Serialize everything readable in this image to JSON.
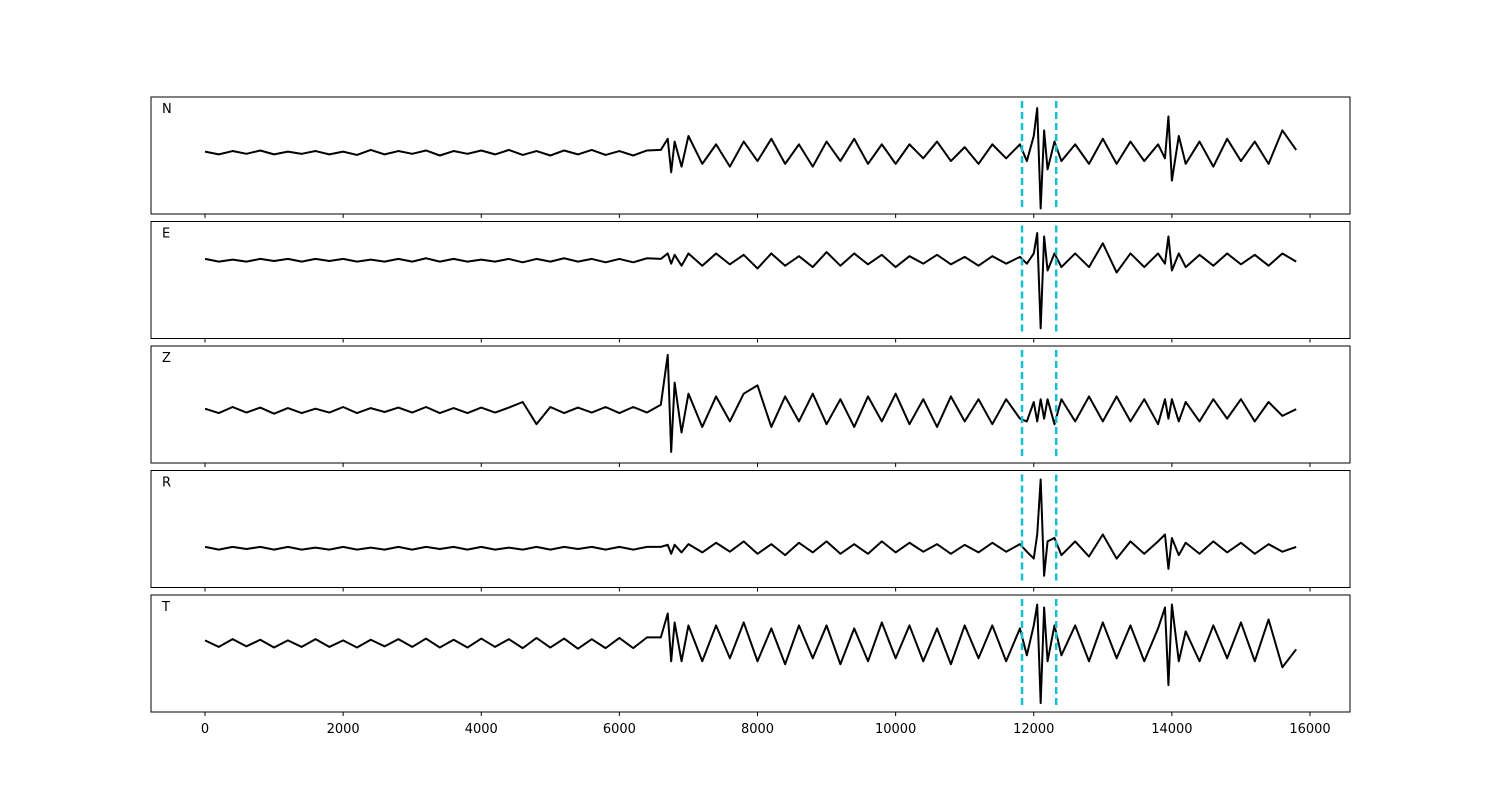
{
  "chart_data": [
    {
      "type": "line",
      "label": "N",
      "color": "#000000",
      "vline_color": "#17becf",
      "xlim": [
        -782,
        16579
      ],
      "ylim": [
        -1.1,
        1
      ],
      "xticks": [
        0,
        2000,
        4000,
        6000,
        8000,
        10000,
        12000,
        14000,
        16000
      ],
      "vlines": [
        11830,
        12325
      ],
      "x": [
        0,
        200,
        400,
        600,
        800,
        1000,
        1200,
        1400,
        1600,
        1800,
        2000,
        2200,
        2400,
        2600,
        2800,
        3000,
        3200,
        3400,
        3600,
        3800,
        4000,
        4200,
        4400,
        4600,
        4800,
        5000,
        5200,
        5400,
        5600,
        5800,
        6000,
        6200,
        6400,
        6600,
        6700,
        6750,
        6800,
        6900,
        7000,
        7200,
        7400,
        7600,
        7800,
        8000,
        8200,
        8400,
        8600,
        8800,
        9000,
        9200,
        9400,
        9600,
        9800,
        10000,
        10200,
        10400,
        10600,
        10800,
        11000,
        11200,
        11400,
        11600,
        11800,
        11900,
        12000,
        12050,
        12100,
        12150,
        12200,
        12300,
        12400,
        12600,
        12800,
        13000,
        13200,
        13400,
        13600,
        13800,
        13900,
        13950,
        14000,
        14100,
        14200,
        14400,
        14600,
        14800,
        15000,
        15200,
        15400,
        15600,
        15800
      ],
      "values": [
        0.02,
        -0.03,
        0.03,
        -0.02,
        0.04,
        -0.03,
        0.02,
        -0.02,
        0.03,
        -0.03,
        0.02,
        -0.04,
        0.05,
        -0.03,
        0.03,
        -0.02,
        0.04,
        -0.05,
        0.03,
        -0.02,
        0.04,
        -0.03,
        0.05,
        -0.04,
        0.03,
        -0.05,
        0.04,
        -0.03,
        0.05,
        -0.04,
        0.03,
        -0.05,
        0.04,
        0.05,
        0.25,
        -0.35,
        0.2,
        -0.25,
        0.3,
        -0.2,
        0.15,
        -0.25,
        0.2,
        -0.15,
        0.25,
        -0.2,
        0.15,
        -0.25,
        0.2,
        -0.15,
        0.25,
        -0.2,
        0.15,
        -0.2,
        0.15,
        -0.1,
        0.2,
        -0.15,
        0.1,
        -0.2,
        0.15,
        -0.1,
        0.15,
        -0.15,
        0.3,
        0.8,
        -1.0,
        0.4,
        -0.3,
        0.2,
        -0.15,
        0.15,
        -0.2,
        0.25,
        -0.2,
        0.2,
        -0.15,
        0.15,
        -0.1,
        0.65,
        -0.5,
        0.3,
        -0.2,
        0.2,
        -0.25,
        0.25,
        -0.15,
        0.2,
        -0.2,
        0.4,
        0.05
      ]
    },
    {
      "type": "line",
      "label": "E",
      "color": "#000000",
      "vline_color": "#17becf",
      "xlim": [
        -782,
        16579
      ],
      "ylim": [
        -1.15,
        0.57
      ],
      "xticks": [
        0,
        2000,
        4000,
        6000,
        8000,
        10000,
        12000,
        14000,
        16000
      ],
      "vlines": [
        11830,
        12325
      ],
      "x": [
        0,
        200,
        400,
        600,
        800,
        1000,
        1200,
        1400,
        1600,
        1800,
        2000,
        2200,
        2400,
        2600,
        2800,
        3000,
        3200,
        3400,
        3600,
        3800,
        4000,
        4200,
        4400,
        4600,
        4800,
        5000,
        5200,
        5400,
        5600,
        5800,
        6000,
        6200,
        6400,
        6600,
        6700,
        6750,
        6800,
        6900,
        7000,
        7200,
        7400,
        7600,
        7800,
        8000,
        8200,
        8400,
        8600,
        8800,
        9000,
        9200,
        9400,
        9600,
        9800,
        10000,
        10200,
        10400,
        10600,
        10800,
        11000,
        11200,
        11400,
        11600,
        11800,
        11900,
        12000,
        12050,
        12100,
        12150,
        12200,
        12300,
        12400,
        12600,
        12800,
        13000,
        13200,
        13400,
        13600,
        13800,
        13900,
        13950,
        14000,
        14100,
        14200,
        14400,
        14600,
        14800,
        15000,
        15200,
        15400,
        15600,
        15800
      ],
      "values": [
        0.02,
        -0.02,
        0.01,
        -0.02,
        0.02,
        -0.01,
        0.02,
        -0.02,
        0.02,
        -0.01,
        0.02,
        -0.02,
        0.01,
        -0.02,
        0.02,
        -0.02,
        0.03,
        -0.02,
        0.02,
        -0.02,
        0.01,
        -0.02,
        0.02,
        -0.03,
        0.02,
        -0.02,
        0.03,
        -0.02,
        0.02,
        -0.03,
        0.02,
        -0.03,
        0.03,
        0.02,
        0.1,
        -0.05,
        0.08,
        -0.08,
        0.1,
        -0.08,
        0.1,
        -0.06,
        0.08,
        -0.12,
        0.1,
        -0.08,
        0.06,
        -0.1,
        0.12,
        -0.08,
        0.1,
        -0.06,
        0.08,
        -0.1,
        0.06,
        -0.05,
        0.08,
        -0.06,
        0.05,
        -0.08,
        0.06,
        -0.05,
        0.05,
        -0.05,
        0.1,
        0.4,
        -1.0,
        0.35,
        -0.15,
        0.1,
        -0.1,
        0.1,
        -0.1,
        0.25,
        -0.18,
        0.1,
        -0.1,
        0.1,
        -0.05,
        0.35,
        -0.15,
        0.1,
        -0.1,
        0.08,
        -0.08,
        0.1,
        -0.06,
        0.08,
        -0.08,
        0.1,
        -0.02
      ]
    },
    {
      "type": "line",
      "label": "Z",
      "color": "#000000",
      "vline_color": "#17becf",
      "xlim": [
        -782,
        16579
      ],
      "ylim": [
        -0.95,
        1.16
      ],
      "xticks": [
        0,
        2000,
        4000,
        6000,
        8000,
        10000,
        12000,
        14000,
        16000
      ],
      "vlines": [
        11830,
        12325
      ],
      "x": [
        0,
        200,
        400,
        600,
        800,
        1000,
        1200,
        1400,
        1600,
        1800,
        2000,
        2200,
        2400,
        2600,
        2800,
        3000,
        3200,
        3400,
        3600,
        3800,
        4000,
        4200,
        4400,
        4600,
        4800,
        5000,
        5200,
        5400,
        5600,
        5800,
        6000,
        6200,
        6400,
        6600,
        6700,
        6750,
        6800,
        6900,
        7000,
        7200,
        7400,
        7600,
        7800,
        8000,
        8200,
        8400,
        8600,
        8800,
        9000,
        9200,
        9400,
        9600,
        9800,
        10000,
        10200,
        10400,
        10600,
        10800,
        11000,
        11200,
        11400,
        11600,
        11800,
        11900,
        12000,
        12050,
        12100,
        12150,
        12200,
        12300,
        12400,
        12600,
        12800,
        13000,
        13200,
        13400,
        13600,
        13800,
        13900,
        13950,
        14000,
        14100,
        14200,
        14400,
        14600,
        14800,
        15000,
        15200,
        15400,
        15600,
        15800
      ],
      "values": [
        0.03,
        -0.05,
        0.06,
        -0.04,
        0.05,
        -0.06,
        0.04,
        -0.05,
        0.03,
        -0.04,
        0.06,
        -0.05,
        0.04,
        -0.03,
        0.05,
        -0.04,
        0.06,
        -0.05,
        0.04,
        -0.05,
        0.05,
        -0.04,
        0.05,
        0.15,
        -0.25,
        0.06,
        -0.05,
        0.05,
        -0.04,
        0.06,
        -0.05,
        0.06,
        -0.04,
        0.1,
        1.0,
        -0.75,
        0.5,
        -0.4,
        0.3,
        -0.3,
        0.25,
        -0.2,
        0.3,
        0.45,
        -0.3,
        0.25,
        -0.2,
        0.3,
        -0.25,
        0.2,
        -0.3,
        0.25,
        -0.2,
        0.3,
        -0.25,
        0.2,
        -0.3,
        0.25,
        -0.2,
        0.2,
        -0.25,
        0.2,
        -0.15,
        -0.2,
        0.15,
        -0.2,
        0.2,
        -0.15,
        0.2,
        -0.25,
        0.2,
        -0.2,
        0.25,
        -0.2,
        0.25,
        -0.2,
        0.2,
        -0.25,
        0.2,
        -0.15,
        0.2,
        -0.2,
        0.15,
        -0.2,
        0.2,
        -0.15,
        0.2,
        -0.2,
        0.15,
        -0.1,
        0.02
      ]
    },
    {
      "type": "line",
      "label": "R",
      "color": "#000000",
      "vline_color": "#17becf",
      "xlim": [
        -782,
        16579
      ],
      "ylim": [
        -0.57,
        1.13
      ],
      "xticks": [
        0,
        2000,
        4000,
        6000,
        8000,
        10000,
        12000,
        14000,
        16000
      ],
      "vlines": [
        11830,
        12325
      ],
      "x": [
        0,
        200,
        400,
        600,
        800,
        1000,
        1200,
        1400,
        1600,
        1800,
        2000,
        2200,
        2400,
        2600,
        2800,
        3000,
        3200,
        3400,
        3600,
        3800,
        4000,
        4200,
        4400,
        4600,
        4800,
        5000,
        5200,
        5400,
        5600,
        5800,
        6000,
        6200,
        6400,
        6600,
        6700,
        6750,
        6800,
        6900,
        7000,
        7200,
        7400,
        7600,
        7800,
        8000,
        8200,
        8400,
        8600,
        8800,
        9000,
        9200,
        9400,
        9600,
        9800,
        10000,
        10200,
        10400,
        10600,
        10800,
        11000,
        11200,
        11400,
        11600,
        11800,
        11900,
        12000,
        12050,
        12100,
        12150,
        12200,
        12300,
        12400,
        12600,
        12800,
        13000,
        13200,
        13400,
        13600,
        13800,
        13900,
        13950,
        14000,
        14100,
        14200,
        14400,
        14600,
        14800,
        15000,
        15200,
        15400,
        15600,
        15800
      ],
      "values": [
        0.02,
        -0.02,
        0.02,
        -0.01,
        0.02,
        -0.02,
        0.02,
        -0.02,
        0.01,
        -0.02,
        0.02,
        -0.02,
        0.01,
        -0.02,
        0.02,
        -0.02,
        0.02,
        -0.01,
        0.02,
        -0.02,
        0.02,
        -0.02,
        0.01,
        -0.02,
        0.02,
        -0.02,
        0.02,
        -0.01,
        0.02,
        -0.02,
        0.02,
        -0.02,
        0.02,
        0.02,
        0.05,
        -0.08,
        0.05,
        -0.06,
        0.06,
        -0.06,
        0.08,
        -0.05,
        0.1,
        -0.08,
        0.06,
        -0.1,
        0.08,
        -0.06,
        0.1,
        -0.08,
        0.06,
        -0.08,
        0.1,
        -0.06,
        0.08,
        -0.05,
        0.06,
        -0.08,
        0.05,
        -0.06,
        0.08,
        -0.05,
        0.06,
        -0.05,
        -0.15,
        0.2,
        1.0,
        -0.4,
        0.1,
        0.15,
        -0.1,
        0.1,
        -0.12,
        0.2,
        -0.15,
        0.1,
        -0.08,
        0.1,
        0.2,
        -0.3,
        0.15,
        -0.1,
        0.08,
        -0.08,
        0.1,
        -0.06,
        0.08,
        -0.08,
        0.06,
        -0.05,
        0.02
      ]
    },
    {
      "type": "line",
      "label": "T",
      "color": "#000000",
      "vline_color": "#17becf",
      "xlim": [
        -782,
        16579
      ],
      "ylim": [
        -1.15,
        0.81
      ],
      "xticks": [
        0,
        2000,
        4000,
        6000,
        8000,
        10000,
        12000,
        14000,
        16000
      ],
      "vlines": [
        11830,
        12325
      ],
      "x": [
        0,
        200,
        400,
        600,
        800,
        1000,
        1200,
        1400,
        1600,
        1800,
        2000,
        2200,
        2400,
        2600,
        2800,
        3000,
        3200,
        3400,
        3600,
        3800,
        4000,
        4200,
        4400,
        4600,
        4800,
        5000,
        5200,
        5400,
        5600,
        5800,
        6000,
        6200,
        6400,
        6600,
        6700,
        6750,
        6800,
        6900,
        7000,
        7200,
        7400,
        7600,
        7800,
        8000,
        8200,
        8400,
        8600,
        8800,
        9000,
        9200,
        9400,
        9600,
        9800,
        10000,
        10200,
        10400,
        10600,
        10800,
        11000,
        11200,
        11400,
        11600,
        11800,
        11900,
        12000,
        12050,
        12100,
        12150,
        12200,
        12300,
        12400,
        12600,
        12800,
        13000,
        13200,
        13400,
        13600,
        13800,
        13900,
        13950,
        14000,
        14100,
        14200,
        14400,
        14600,
        14800,
        15000,
        15200,
        15400,
        15600,
        15800
      ],
      "values": [
        0.05,
        -0.06,
        0.07,
        -0.05,
        0.06,
        -0.07,
        0.05,
        -0.06,
        0.07,
        -0.06,
        0.05,
        -0.07,
        0.06,
        -0.05,
        0.07,
        -0.06,
        0.08,
        -0.07,
        0.06,
        -0.07,
        0.08,
        -0.06,
        0.07,
        -0.08,
        0.09,
        -0.07,
        0.08,
        -0.09,
        0.07,
        -0.08,
        0.09,
        -0.08,
        0.1,
        0.1,
        0.5,
        -0.3,
        0.35,
        -0.3,
        0.3,
        -0.3,
        0.3,
        -0.25,
        0.35,
        -0.3,
        0.25,
        -0.35,
        0.3,
        -0.25,
        0.3,
        -0.35,
        0.25,
        -0.3,
        0.35,
        -0.25,
        0.3,
        -0.3,
        0.25,
        -0.35,
        0.3,
        -0.25,
        0.3,
        -0.3,
        0.25,
        -0.2,
        0.3,
        0.65,
        -1.0,
        0.6,
        -0.3,
        0.3,
        -0.2,
        0.3,
        -0.3,
        0.35,
        -0.25,
        0.3,
        -0.3,
        0.25,
        0.6,
        -0.7,
        0.65,
        -0.3,
        0.2,
        -0.3,
        0.3,
        -0.25,
        0.35,
        -0.3,
        0.4,
        -0.4,
        -0.1
      ]
    }
  ]
}
